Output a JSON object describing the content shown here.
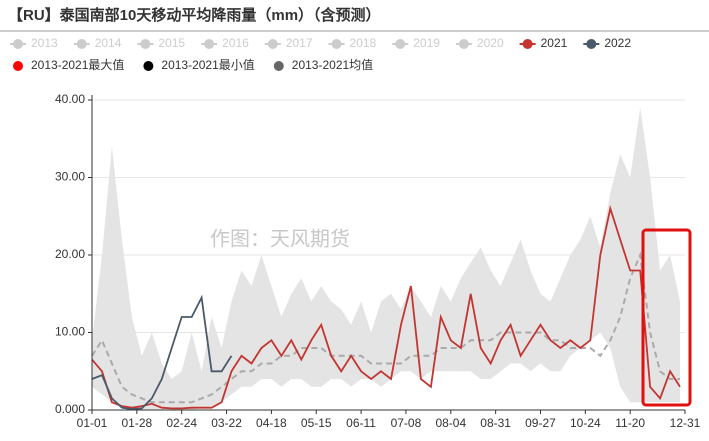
{
  "chart_data": {
    "type": "line",
    "title": "【RU】泰国南部10天移动平均降雨量（mm）（含预测）",
    "watermark": "作图：天风期货",
    "x": [
      0,
      6,
      12,
      18,
      24,
      30,
      36,
      42,
      48,
      54,
      60,
      66,
      72,
      78,
      84,
      90,
      96,
      102,
      108,
      114,
      120,
      126,
      132,
      138,
      144,
      150,
      156,
      162,
      168,
      174,
      180,
      186,
      192,
      198,
      204,
      210,
      216,
      222,
      228,
      234,
      240,
      246,
      252,
      258,
      264,
      270,
      276,
      282,
      288,
      294,
      300,
      306,
      312,
      318,
      324,
      330,
      336,
      342,
      348,
      354
    ],
    "xlim": [
      0,
      357
    ],
    "xticks": [
      {
        "value": 0,
        "label": "01-01"
      },
      {
        "value": 27,
        "label": "01-28"
      },
      {
        "value": 54,
        "label": "02-24"
      },
      {
        "value": 81,
        "label": "03-22"
      },
      {
        "value": 108,
        "label": "04-18"
      },
      {
        "value": 135,
        "label": "05-15"
      },
      {
        "value": 162,
        "label": "06-11"
      },
      {
        "value": 189,
        "label": "07-08"
      },
      {
        "value": 216,
        "label": "08-04"
      },
      {
        "value": 243,
        "label": "08-31"
      },
      {
        "value": 270,
        "label": "09-27"
      },
      {
        "value": 297,
        "label": "10-24"
      },
      {
        "value": 324,
        "label": "11-20"
      },
      {
        "value": 357,
        "label": "12-31"
      }
    ],
    "ylim": [
      0,
      40
    ],
    "yticks": [
      {
        "value": 0,
        "label": "0.000"
      },
      {
        "value": 10,
        "label": "10.00"
      },
      {
        "value": 20,
        "label": "20.00"
      },
      {
        "value": 30,
        "label": "30.00"
      },
      {
        "value": 40,
        "label": "40.00"
      }
    ],
    "grid": true,
    "series": [
      {
        "name": "2013",
        "color": "#cccccc",
        "visible": false
      },
      {
        "name": "2014",
        "color": "#cccccc",
        "visible": false
      },
      {
        "name": "2015",
        "color": "#cccccc",
        "visible": false
      },
      {
        "name": "2016",
        "color": "#cccccc",
        "visible": false
      },
      {
        "name": "2017",
        "color": "#cccccc",
        "visible": false
      },
      {
        "name": "2018",
        "color": "#cccccc",
        "visible": false
      },
      {
        "name": "2019",
        "color": "#cccccc",
        "visible": false
      },
      {
        "name": "2020",
        "color": "#cccccc",
        "visible": false
      },
      {
        "name": "2021",
        "color": "#c23531",
        "style": "line",
        "visible": true,
        "values": [
          6.5,
          5,
          1,
          0.5,
          0.3,
          0.5,
          0.8,
          0.3,
          0.2,
          0.2,
          0.3,
          0.3,
          0.3,
          1,
          5,
          7,
          6,
          8,
          9,
          7,
          9,
          6.5,
          9,
          11,
          7,
          5,
          7,
          5,
          4,
          5,
          4,
          11,
          16,
          4,
          3,
          12,
          9,
          8,
          15,
          8,
          6,
          9,
          11,
          7,
          9,
          11,
          9,
          8,
          9,
          8,
          9,
          20,
          26,
          22,
          18,
          18,
          3,
          1.5,
          5,
          3
        ]
      },
      {
        "name": "2022",
        "color": "#4a5a6a",
        "style": "line",
        "visible": true,
        "values": [
          4,
          4.5,
          1.5,
          0.3,
          0.1,
          0.2,
          1.5,
          4,
          8,
          12,
          12,
          14.5,
          5,
          5,
          7,
          null,
          null,
          null,
          null,
          null,
          null,
          null,
          null,
          null,
          null,
          null,
          null,
          null,
          null,
          null,
          null,
          null,
          null,
          null,
          null,
          null,
          null,
          null,
          null,
          null,
          null,
          null,
          null,
          null,
          null,
          null,
          null,
          null,
          null,
          null,
          null,
          null,
          null,
          null,
          null,
          null,
          null,
          null,
          null,
          null
        ]
      },
      {
        "name": "2013-2021最大值",
        "color": "#ff0000",
        "style": "area",
        "area_color": "#e4e4e4",
        "visible": true,
        "values": [
          9,
          20,
          34,
          22,
          12,
          7,
          10,
          6,
          4,
          5,
          10,
          5,
          12,
          8,
          14,
          18,
          16,
          20,
          16,
          12,
          15,
          17,
          14,
          16,
          14,
          13,
          11,
          14,
          10,
          14,
          15,
          13,
          16,
          14,
          12,
          16,
          14,
          17,
          19,
          21,
          18,
          16,
          19,
          22,
          18,
          15,
          14,
          17,
          20,
          22,
          25,
          21,
          28,
          33,
          30,
          39,
          30,
          18,
          20,
          14
        ]
      },
      {
        "name": "2013-2021最小值",
        "color": "#000000",
        "style": "floor",
        "visible": true,
        "values": [
          3,
          2,
          1,
          0.5,
          0.2,
          0,
          0,
          0,
          0,
          0,
          0,
          0.3,
          0.5,
          1,
          2,
          3,
          3,
          4,
          4,
          3,
          4,
          4,
          3,
          3,
          4,
          4,
          3,
          4,
          4,
          3,
          4,
          5,
          5,
          4,
          5,
          5,
          5,
          5,
          5,
          4,
          4,
          5,
          6,
          6,
          5,
          6,
          5,
          5,
          7,
          8,
          9,
          10,
          8,
          3,
          1,
          1,
          1,
          1,
          1,
          1
        ]
      },
      {
        "name": "2013-2021均值",
        "color": "#666666",
        "style": "dashed",
        "line_color": "#aaaaaa",
        "visible": true,
        "values": [
          7,
          9,
          6,
          3,
          2,
          1.5,
          1,
          1,
          1,
          1,
          1,
          1.5,
          2,
          3,
          4,
          5,
          5,
          6,
          6,
          7,
          7,
          8,
          8,
          8,
          7,
          7,
          7,
          7,
          6,
          6,
          6,
          6,
          7,
          7,
          7,
          8,
          8,
          8,
          9,
          9,
          9,
          10,
          10,
          10,
          10,
          10,
          9,
          9,
          8,
          8,
          8,
          7,
          9,
          12,
          17,
          20,
          10,
          5,
          4,
          4
        ]
      }
    ]
  }
}
